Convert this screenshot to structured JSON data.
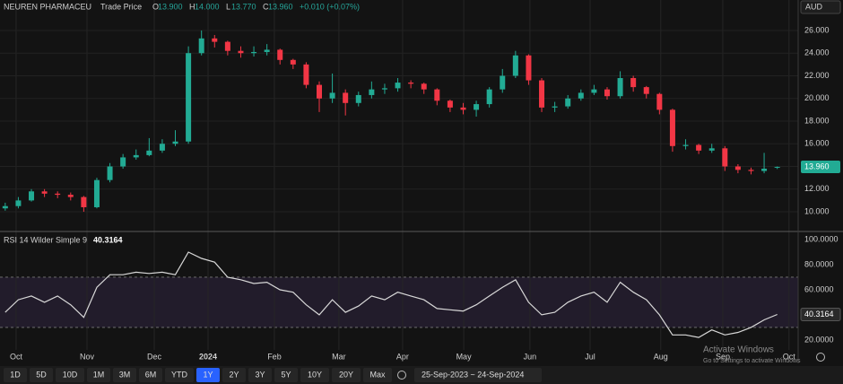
{
  "header": {
    "title": "NEUREN PHARMACEU",
    "subtitle": "Trade Price",
    "quote": [
      {
        "key": "O",
        "value": "13.900"
      },
      {
        "key": "H",
        "value": "14.000"
      },
      {
        "key": "L",
        "value": "13.770"
      },
      {
        "key": "C",
        "value": "13.960"
      }
    ],
    "change": "+0.010 (+0.07%)",
    "currency": "AUD"
  },
  "chart_data": [
    {
      "type": "candlestick",
      "up_color": "#22ab94",
      "down_color": "#f23645",
      "open": [
        10.3,
        10.5,
        11.0,
        11.8,
        11.6,
        11.5,
        11.3,
        10.4,
        12.8,
        14.0,
        14.8,
        15.0,
        15.4,
        16.0,
        16.2,
        24.0,
        25.3,
        25.0,
        24.2,
        24.0,
        24.1,
        24.3,
        23.4,
        23.0,
        21.2,
        20.0,
        20.5,
        19.6,
        20.3,
        20.8,
        20.9,
        21.4,
        21.3,
        20.8,
        19.8,
        19.2,
        19.0,
        19.5,
        20.8,
        22.0,
        23.8,
        21.6,
        19.2,
        19.3,
        20.0,
        20.5,
        20.8,
        20.2,
        21.8,
        21.0,
        20.4,
        19.0,
        15.8,
        15.9,
        15.4,
        15.6,
        14.0,
        13.7,
        13.6,
        13.9
      ],
      "high": [
        10.8,
        11.3,
        12.0,
        12.0,
        11.8,
        11.7,
        11.4,
        13.0,
        14.3,
        15.1,
        15.5,
        16.5,
        16.4,
        17.2,
        24.6,
        26.0,
        25.6,
        25.1,
        24.6,
        24.6,
        24.8,
        24.4,
        23.5,
        23.2,
        21.5,
        22.2,
        20.8,
        20.6,
        21.5,
        21.3,
        21.8,
        21.6,
        21.4,
        20.9,
        19.9,
        19.6,
        19.8,
        21.0,
        22.6,
        24.2,
        23.9,
        21.8,
        19.7,
        20.3,
        20.8,
        21.2,
        21.0,
        22.4,
        22.0,
        21.1,
        20.5,
        19.1,
        16.4,
        16.0,
        16.0,
        15.8,
        14.2,
        13.9,
        15.2,
        14.0
      ],
      "low": [
        10.1,
        10.3,
        10.9,
        11.3,
        11.2,
        11.0,
        10.0,
        10.3,
        12.6,
        13.8,
        14.6,
        14.9,
        15.2,
        15.8,
        16.0,
        23.8,
        24.5,
        23.8,
        23.6,
        23.7,
        23.8,
        23.0,
        22.6,
        20.9,
        18.8,
        19.6,
        18.5,
        19.3,
        20.0,
        20.4,
        20.6,
        20.9,
        20.4,
        19.4,
        18.8,
        18.6,
        18.4,
        19.2,
        20.5,
        21.8,
        21.2,
        18.8,
        18.8,
        19.1,
        19.8,
        20.3,
        19.9,
        20.0,
        20.6,
        20.0,
        18.6,
        15.3,
        15.5,
        15.1,
        15.2,
        13.6,
        13.4,
        13.3,
        13.4,
        13.77
      ],
      "close": [
        10.5,
        11.0,
        11.8,
        11.6,
        11.5,
        11.3,
        10.4,
        12.8,
        14.0,
        14.8,
        15.0,
        15.4,
        16.0,
        16.2,
        24.0,
        25.3,
        25.0,
        24.2,
        24.0,
        24.1,
        24.3,
        23.4,
        23.0,
        21.2,
        20.0,
        20.5,
        19.6,
        20.3,
        20.8,
        20.9,
        21.4,
        21.3,
        20.8,
        19.8,
        19.2,
        19.0,
        19.5,
        20.8,
        22.0,
        23.8,
        21.6,
        19.2,
        19.3,
        20.0,
        20.5,
        20.8,
        20.2,
        21.8,
        21.0,
        20.4,
        19.0,
        15.8,
        15.9,
        15.4,
        15.6,
        14.0,
        13.7,
        13.6,
        13.8,
        13.96
      ],
      "last_label": "13.960",
      "xlim": [
        -0.4,
        60.6
      ],
      "xticks": [
        {
          "value": 0.83,
          "label": "Oct"
        },
        {
          "value": 6.25,
          "label": "Nov"
        },
        {
          "value": 11.39,
          "label": "Dec"
        },
        {
          "value": 15.5,
          "label": "2024"
        },
        {
          "value": 20.57,
          "label": "Feb"
        },
        {
          "value": 25.5,
          "label": "Mar"
        },
        {
          "value": 30.37,
          "label": "Apr"
        },
        {
          "value": 35.04,
          "label": "May"
        },
        {
          "value": 40.1,
          "label": "Jun"
        },
        {
          "value": 44.7,
          "label": "Jul"
        },
        {
          "value": 50.1,
          "label": "Aug"
        },
        {
          "value": 54.84,
          "label": "Sep"
        },
        {
          "value": 59.9,
          "label": "Oct"
        }
      ],
      "ylim": [
        8.34,
        28.69
      ],
      "yticks": [
        {
          "value": 10,
          "label": "10.000"
        },
        {
          "value": 12,
          "label": "12.000"
        },
        {
          "value": 14,
          "label": "14.000"
        },
        {
          "value": 16,
          "label": "16.000"
        },
        {
          "value": 18,
          "label": "18.000"
        },
        {
          "value": 20,
          "label": "20.000"
        },
        {
          "value": 22,
          "label": "22.000"
        },
        {
          "value": 24,
          "label": "24.000"
        },
        {
          "value": 26,
          "label": "26.000"
        }
      ],
      "grid": true
    },
    {
      "type": "line",
      "title": "RSI 14 Wilder Simple 9",
      "color": "#d8d8d8",
      "values": [
        42,
        52,
        55,
        50,
        55,
        48,
        38,
        62,
        72,
        72,
        74,
        73,
        74,
        72,
        90,
        85,
        82,
        70,
        68,
        65,
        66,
        60,
        58,
        48,
        40,
        52,
        42,
        47,
        55,
        52,
        58,
        55,
        52,
        45,
        44,
        43,
        48,
        55,
        62,
        68,
        50,
        40,
        42,
        50,
        55,
        58,
        50,
        66,
        58,
        52,
        40,
        24,
        24,
        22,
        28,
        24,
        26,
        30,
        36,
        40.3164
      ],
      "band": [
        30,
        70
      ],
      "band_color": "#7e57c2",
      "ylim": [
        12.1,
        106.4
      ],
      "yticks": [
        {
          "value": 20,
          "label": "20.0000"
        },
        {
          "value": 40,
          "label": "40.0000"
        },
        {
          "value": 60,
          "label": "60.0000"
        },
        {
          "value": 80,
          "label": "80.0000"
        },
        {
          "value": 100,
          "label": "100.0000"
        }
      ]
    }
  ],
  "overlay": {
    "line1": "Activate Windows",
    "line2": "Go to Settings to activate Windows"
  },
  "toolbar": {
    "ranges": [
      "1D",
      "5D",
      "10D",
      "1M",
      "3M",
      "6M",
      "YTD",
      "1Y",
      "2Y",
      "3Y",
      "5Y",
      "10Y",
      "20Y",
      "Max"
    ],
    "active": 7,
    "date_range": "25-Sep-2023 ~ 24-Sep-2024"
  }
}
